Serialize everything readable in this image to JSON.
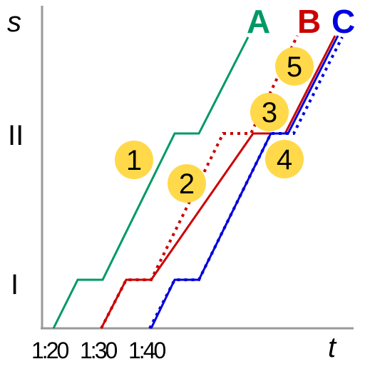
{
  "axes": {
    "y_label": "s",
    "x_label": "t",
    "stations": [
      "I",
      "II"
    ],
    "time_ticks": [
      "1:20",
      "1:30",
      "1:40"
    ]
  },
  "trains": [
    {
      "name": "A",
      "color": "#009966"
    },
    {
      "name": "B",
      "color": "#cc0000"
    },
    {
      "name": "C",
      "color": "#0000dd"
    }
  ],
  "markers": [
    "1",
    "2",
    "3",
    "4",
    "5"
  ],
  "marker_color": "#ffd94a"
}
